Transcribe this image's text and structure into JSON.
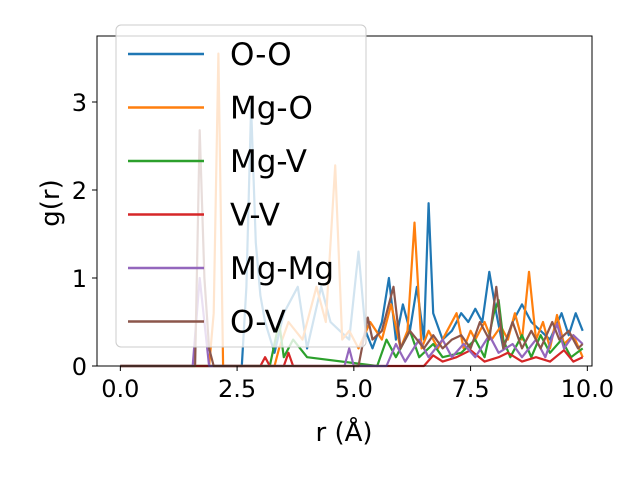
{
  "chart_data": {
    "type": "line",
    "title": "",
    "xlabel": "r (Å)",
    "ylabel": "g(r)",
    "xlim": [
      -0.5,
      10.1
    ],
    "ylim": [
      0,
      3.75
    ],
    "x_ticks": [
      0,
      2.5,
      5,
      7.5,
      10
    ],
    "x_tick_labels": [
      "0.0",
      "2.5",
      "5.0",
      "7.5",
      "10.0"
    ],
    "y_ticks": [
      0,
      1,
      2,
      3
    ],
    "y_tick_labels": [
      "0",
      "1",
      "2",
      "3"
    ],
    "grid": false,
    "legend_position": "upper-left",
    "series": [
      {
        "name": "O-O",
        "color": "#1f77b4",
        "points": [
          [
            0,
            0
          ],
          [
            2.6,
            0
          ],
          [
            2.7,
            0.9
          ],
          [
            2.8,
            2.95
          ],
          [
            2.9,
            1.4
          ],
          [
            3.0,
            0.8
          ],
          [
            3.1,
            0.5
          ],
          [
            3.3,
            0.15
          ],
          [
            3.5,
            0.6
          ],
          [
            3.8,
            0.9
          ],
          [
            4.0,
            0.2
          ],
          [
            4.3,
            0.9
          ],
          [
            4.5,
            0.5
          ],
          [
            4.7,
            0.4
          ],
          [
            4.9,
            0.3
          ],
          [
            5.1,
            1.3
          ],
          [
            5.25,
            0.4
          ],
          [
            5.4,
            0.2
          ],
          [
            5.6,
            0.5
          ],
          [
            5.75,
            1.0
          ],
          [
            5.9,
            0.3
          ],
          [
            6.05,
            0.7
          ],
          [
            6.2,
            0.4
          ],
          [
            6.35,
            0.9
          ],
          [
            6.5,
            0.3
          ],
          [
            6.6,
            1.85
          ],
          [
            6.7,
            0.6
          ],
          [
            6.9,
            0.3
          ],
          [
            7.1,
            0.4
          ],
          [
            7.3,
            0.6
          ],
          [
            7.45,
            0.5
          ],
          [
            7.6,
            0.65
          ],
          [
            7.75,
            0.5
          ],
          [
            7.9,
            1.07
          ],
          [
            8.05,
            0.6
          ],
          [
            8.2,
            0.2
          ],
          [
            8.4,
            0.5
          ],
          [
            8.6,
            0.7
          ],
          [
            8.8,
            0.5
          ],
          [
            9.0,
            0.4
          ],
          [
            9.2,
            0.3
          ],
          [
            9.45,
            0.6
          ],
          [
            9.6,
            0.35
          ],
          [
            9.75,
            0.6
          ],
          [
            9.9,
            0.4
          ]
        ]
      },
      {
        "name": "Mg-O",
        "color": "#ff7f0e",
        "points": [
          [
            0,
            0
          ],
          [
            1.9,
            0
          ],
          [
            2.0,
            0.6
          ],
          [
            2.1,
            3.55
          ],
          [
            2.2,
            0
          ],
          [
            3.3,
            0
          ],
          [
            3.4,
            0.2
          ],
          [
            3.6,
            0.5
          ],
          [
            3.9,
            0.3
          ],
          [
            4.2,
            0.9
          ],
          [
            4.4,
            0.5
          ],
          [
            4.6,
            2.28
          ],
          [
            4.75,
            0.3
          ],
          [
            4.9,
            0.4
          ],
          [
            5.1,
            0.2
          ],
          [
            5.35,
            0.5
          ],
          [
            5.6,
            0.3
          ],
          [
            5.8,
            0.7
          ],
          [
            6.0,
            0.2
          ],
          [
            6.15,
            0.4
          ],
          [
            6.3,
            1.63
          ],
          [
            6.45,
            0.2
          ],
          [
            6.6,
            0.4
          ],
          [
            6.8,
            0.2
          ],
          [
            7.0,
            0.4
          ],
          [
            7.2,
            0.6
          ],
          [
            7.35,
            0.2
          ],
          [
            7.5,
            0.4
          ],
          [
            7.6,
            0.3
          ],
          [
            7.8,
            0.5
          ],
          [
            7.95,
            0.3
          ],
          [
            8.15,
            0.45
          ],
          [
            8.3,
            0.3
          ],
          [
            8.45,
            0.6
          ],
          [
            8.6,
            0.3
          ],
          [
            8.75,
            1.07
          ],
          [
            8.9,
            0.3
          ],
          [
            9.05,
            0.5
          ],
          [
            9.2,
            0.2
          ],
          [
            9.35,
            0.58
          ],
          [
            9.5,
            0.25
          ],
          [
            9.7,
            0.35
          ],
          [
            9.9,
            0.1
          ]
        ]
      },
      {
        "name": "Mg-V",
        "color": "#2ca02c",
        "points": [
          [
            0,
            0
          ],
          [
            3.2,
            0
          ],
          [
            3.4,
            0.5
          ],
          [
            3.5,
            0.1
          ],
          [
            3.7,
            0.3
          ],
          [
            4.0,
            0.1
          ],
          [
            5.5,
            0
          ],
          [
            5.7,
            0.3
          ],
          [
            5.9,
            0.1
          ],
          [
            6.2,
            0.4
          ],
          [
            6.4,
            0.1
          ],
          [
            6.7,
            0.25
          ],
          [
            6.9,
            0.1
          ],
          [
            7.3,
            0.15
          ],
          [
            7.6,
            0.3
          ],
          [
            7.8,
            0.1
          ],
          [
            8.0,
            0.6
          ],
          [
            8.1,
            0.75
          ],
          [
            8.2,
            0.3
          ],
          [
            8.35,
            0.1
          ],
          [
            8.6,
            0.35
          ],
          [
            8.8,
            0.1
          ],
          [
            9.0,
            0.35
          ],
          [
            9.2,
            0.15
          ],
          [
            9.45,
            0.3
          ],
          [
            9.65,
            0.1
          ],
          [
            9.9,
            0.2
          ]
        ]
      },
      {
        "name": "V-V",
        "color": "#d62728",
        "points": [
          [
            0,
            0
          ],
          [
            3.0,
            0
          ],
          [
            3.1,
            0.1
          ],
          [
            3.2,
            0
          ],
          [
            3.5,
            0
          ],
          [
            3.6,
            0.15
          ],
          [
            3.7,
            0
          ],
          [
            6.5,
            0
          ],
          [
            6.7,
            0.12
          ],
          [
            6.9,
            0.05
          ],
          [
            7.2,
            0.1
          ],
          [
            7.5,
            0.18
          ],
          [
            7.8,
            0.05
          ],
          [
            8.1,
            0.1
          ],
          [
            8.3,
            0.15
          ],
          [
            8.6,
            0.05
          ],
          [
            8.9,
            0.1
          ],
          [
            9.2,
            0.05
          ],
          [
            9.5,
            0.18
          ],
          [
            9.7,
            0.05
          ],
          [
            9.9,
            0.1
          ]
        ]
      },
      {
        "name": "Mg-Mg",
        "color": "#9467bd",
        "points": [
          [
            0,
            0
          ],
          [
            1.55,
            0
          ],
          [
            1.7,
            1.0
          ],
          [
            1.8,
            0.5
          ],
          [
            1.9,
            0
          ],
          [
            4.8,
            0
          ],
          [
            4.9,
            0.2
          ],
          [
            5.0,
            0
          ],
          [
            5.7,
            0
          ],
          [
            5.9,
            0.25
          ],
          [
            6.1,
            0.05
          ],
          [
            6.4,
            0.3
          ],
          [
            6.6,
            0.1
          ],
          [
            6.9,
            0.3
          ],
          [
            7.1,
            0.1
          ],
          [
            7.35,
            0.25
          ],
          [
            7.6,
            0.1
          ],
          [
            7.9,
            0.35
          ],
          [
            8.1,
            0.15
          ],
          [
            8.4,
            0.25
          ],
          [
            8.6,
            0.1
          ],
          [
            8.9,
            0.3
          ],
          [
            9.1,
            0.1
          ],
          [
            9.35,
            0.48
          ],
          [
            9.5,
            0.2
          ],
          [
            9.7,
            0.35
          ],
          [
            9.9,
            0.25
          ]
        ]
      },
      {
        "name": "O-V",
        "color": "#8c564b",
        "points": [
          [
            0,
            0
          ],
          [
            1.6,
            0
          ],
          [
            1.7,
            2.68
          ],
          [
            1.8,
            1.0
          ],
          [
            1.9,
            0.2
          ],
          [
            2.0,
            0
          ],
          [
            5.1,
            0
          ],
          [
            5.3,
            0.55
          ],
          [
            5.4,
            0.3
          ],
          [
            5.6,
            0.4
          ],
          [
            5.85,
            0.9
          ],
          [
            6.0,
            0.2
          ],
          [
            6.2,
            0.4
          ],
          [
            6.35,
            0.3
          ],
          [
            6.5,
            0.2
          ],
          [
            6.7,
            0.35
          ],
          [
            6.9,
            0.2
          ],
          [
            7.1,
            0.3
          ],
          [
            7.3,
            0.35
          ],
          [
            7.5,
            0.2
          ],
          [
            7.7,
            0.5
          ],
          [
            7.9,
            0.3
          ],
          [
            8.05,
            0.9
          ],
          [
            8.2,
            0.2
          ],
          [
            8.4,
            0.5
          ],
          [
            8.6,
            0.2
          ],
          [
            8.8,
            0.4
          ],
          [
            9.0,
            0.2
          ],
          [
            9.25,
            0.5
          ],
          [
            9.4,
            0.3
          ],
          [
            9.6,
            0.4
          ],
          [
            9.8,
            0.2
          ],
          [
            9.9,
            0.25
          ]
        ]
      }
    ]
  }
}
